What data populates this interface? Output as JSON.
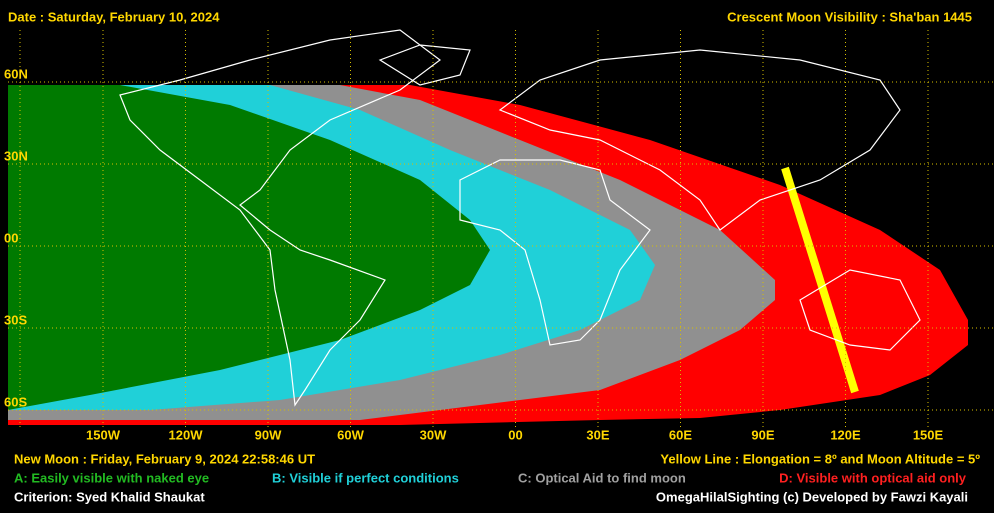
{
  "header": {
    "date": "Date : Saturday, February 10, 2024",
    "title": "Crescent Moon Visibility : Sha'ban  1445"
  },
  "map": {
    "lat_labels": [
      "60N",
      "30N",
      "00",
      "30S",
      "60S"
    ],
    "lon_labels": [
      "150W",
      "120W",
      "90W",
      "60W",
      "30W",
      "00",
      "30E",
      "60E",
      "90E",
      "120E",
      "150E"
    ]
  },
  "footer": {
    "new_moon": "New Moon : Friday, February 9, 2024  22:58:46  UT",
    "yellow_line": "Yellow Line : Elongation = 8º  and Moon Altitude = 5º",
    "legend": [
      "A: Easily visible with naked eye",
      "B: Visible if perfect conditions",
      "C: Optical Aid to find moon",
      "D: Visible with optical aid only"
    ],
    "criterion": "Criterion: Syed Khalid Shaukat",
    "credit": "OmegaHilalSighting  (c) Developed by Fawzi Kayali"
  }
}
